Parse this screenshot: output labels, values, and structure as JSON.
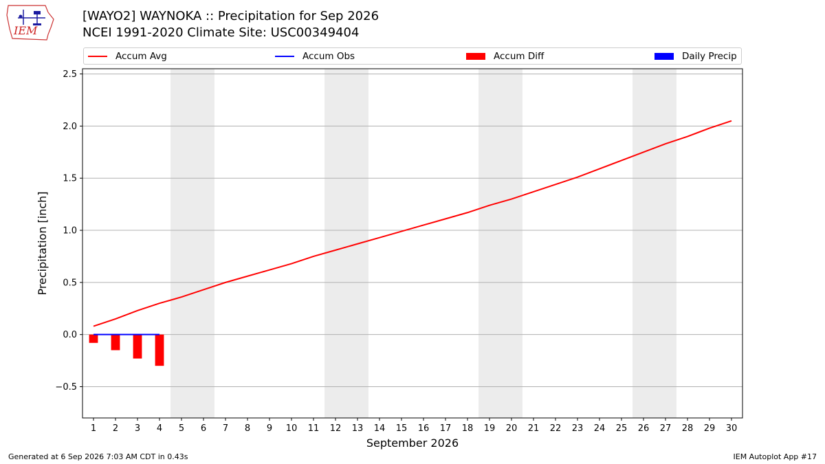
{
  "logo": {
    "text": "IEM",
    "icon": "iem-iowa-logo-icon"
  },
  "title": {
    "line1": "[WAYO2] WAYNOKA :: Precipitation for Sep 2026",
    "line2": "NCEI 1991-2020 Climate Site: USC00349404"
  },
  "legend": [
    {
      "label": "Accum Avg",
      "kind": "line",
      "color": "#ff0000"
    },
    {
      "label": "Accum Obs",
      "kind": "line",
      "color": "#0000ff"
    },
    {
      "label": "Accum Diff",
      "kind": "box",
      "color": "#ff0000"
    },
    {
      "label": "Daily Precip",
      "kind": "box",
      "color": "#0000ff"
    }
  ],
  "footer": {
    "left": "Generated at 6 Sep 2026 7:03 AM CDT in 0.43s",
    "right": "IEM Autoplot App #17"
  },
  "chart_data": {
    "type": "line",
    "xlabel": "September 2026",
    "ylabel": "Precipitation [inch]",
    "xlim": [
      0.5,
      30.5
    ],
    "ylim": [
      -0.8,
      2.55
    ],
    "yticks": [
      -0.5,
      0.0,
      0.5,
      1.0,
      1.5,
      2.0,
      2.5
    ],
    "ytick_labels": [
      "−0.5",
      "0.0",
      "0.5",
      "1.0",
      "1.5",
      "2.0",
      "2.5"
    ],
    "x": [
      1,
      2,
      3,
      4,
      5,
      6,
      7,
      8,
      9,
      10,
      11,
      12,
      13,
      14,
      15,
      16,
      17,
      18,
      19,
      20,
      21,
      22,
      23,
      24,
      25,
      26,
      27,
      28,
      29,
      30
    ],
    "xtick_labels": [
      "1",
      "2",
      "3",
      "4",
      "5",
      "6",
      "7",
      "8",
      "9",
      "10",
      "11",
      "12",
      "13",
      "14",
      "15",
      "16",
      "17",
      "18",
      "19",
      "20",
      "21",
      "22",
      "23",
      "24",
      "25",
      "26",
      "27",
      "28",
      "29",
      "30"
    ],
    "weekend_shading": [
      [
        4.5,
        6.5
      ],
      [
        11.5,
        13.5
      ],
      [
        18.5,
        20.5
      ],
      [
        25.5,
        27.5
      ]
    ],
    "grid": "horizontal",
    "legend_position": "top",
    "series": [
      {
        "name": "Accum Avg",
        "type": "line",
        "color": "#ff0000",
        "x": [
          1,
          2,
          3,
          4,
          5,
          6,
          7,
          8,
          9,
          10,
          11,
          12,
          13,
          14,
          15,
          16,
          17,
          18,
          19,
          20,
          21,
          22,
          23,
          24,
          25,
          26,
          27,
          28,
          29,
          30
        ],
        "values": [
          0.08,
          0.15,
          0.23,
          0.3,
          0.36,
          0.43,
          0.5,
          0.56,
          0.62,
          0.68,
          0.75,
          0.81,
          0.87,
          0.93,
          0.99,
          1.05,
          1.11,
          1.17,
          1.24,
          1.3,
          1.37,
          1.44,
          1.51,
          1.59,
          1.67,
          1.75,
          1.83,
          1.9,
          1.98,
          2.05
        ]
      },
      {
        "name": "Accum Obs",
        "type": "line",
        "color": "#0000ff",
        "x": [
          1,
          2,
          3,
          4
        ],
        "values": [
          0.0,
          0.0,
          0.0,
          0.0
        ]
      },
      {
        "name": "Accum Diff",
        "type": "bar",
        "color": "#ff0000",
        "x": [
          1,
          2,
          3,
          4
        ],
        "values": [
          -0.08,
          -0.15,
          -0.23,
          -0.3
        ]
      },
      {
        "name": "Daily Precip",
        "type": "bar",
        "color": "#0000ff",
        "x": [],
        "values": []
      }
    ]
  }
}
